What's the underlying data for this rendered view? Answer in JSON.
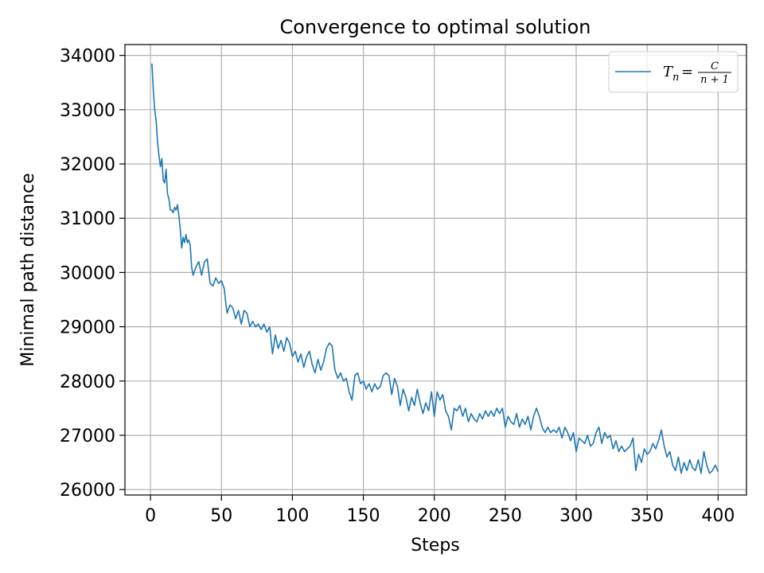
{
  "chart_data": {
    "type": "line",
    "title": "Convergence to optimal solution",
    "xlabel": "Steps",
    "ylabel": "Minimal path distance",
    "xlim": [
      -18,
      420
    ],
    "ylim": [
      25900,
      34200
    ],
    "xticks": [
      0,
      50,
      100,
      150,
      200,
      250,
      300,
      350,
      400
    ],
    "yticks": [
      26000,
      27000,
      28000,
      29000,
      30000,
      31000,
      32000,
      33000,
      34000
    ],
    "grid": true,
    "legend_position": "top-right",
    "series": [
      {
        "name": "T_n = C/(n+1)",
        "legend_lhs": "T",
        "legend_sub": "n",
        "legend_eq": "=",
        "legend_num": "C",
        "legend_den": "n + 1",
        "color": "#1f77b4",
        "points": [
          [
            1,
            33850
          ],
          [
            2,
            33350
          ],
          [
            3,
            33000
          ],
          [
            4,
            32800
          ],
          [
            5,
            32400
          ],
          [
            6,
            32150
          ],
          [
            7,
            31950
          ],
          [
            8,
            32100
          ],
          [
            9,
            31700
          ],
          [
            10,
            31650
          ],
          [
            11,
            31900
          ],
          [
            12,
            31450
          ],
          [
            13,
            31350
          ],
          [
            14,
            31150
          ],
          [
            15,
            31150
          ],
          [
            16,
            31100
          ],
          [
            17,
            31200
          ],
          [
            18,
            31150
          ],
          [
            19,
            31250
          ],
          [
            20,
            31050
          ],
          [
            21,
            30800
          ],
          [
            22,
            30450
          ],
          [
            23,
            30650
          ],
          [
            24,
            30550
          ],
          [
            25,
            30700
          ],
          [
            26,
            30550
          ],
          [
            27,
            30600
          ],
          [
            28,
            30500
          ],
          [
            29,
            30100
          ],
          [
            30,
            29950
          ],
          [
            32,
            30100
          ],
          [
            34,
            30200
          ],
          [
            36,
            29950
          ],
          [
            38,
            30200
          ],
          [
            40,
            30250
          ],
          [
            42,
            29800
          ],
          [
            44,
            29750
          ],
          [
            46,
            29900
          ],
          [
            48,
            29800
          ],
          [
            50,
            29850
          ],
          [
            52,
            29700
          ],
          [
            53,
            29450
          ],
          [
            54,
            29250
          ],
          [
            56,
            29400
          ],
          [
            58,
            29350
          ],
          [
            60,
            29150
          ],
          [
            62,
            29300
          ],
          [
            64,
            29050
          ],
          [
            66,
            29300
          ],
          [
            68,
            29250
          ],
          [
            70,
            29000
          ],
          [
            72,
            29100
          ],
          [
            74,
            29000
          ],
          [
            76,
            29050
          ],
          [
            78,
            28950
          ],
          [
            80,
            29050
          ],
          [
            82,
            28900
          ],
          [
            84,
            29000
          ],
          [
            86,
            28500
          ],
          [
            88,
            28850
          ],
          [
            90,
            28600
          ],
          [
            92,
            28750
          ],
          [
            94,
            28550
          ],
          [
            96,
            28800
          ],
          [
            98,
            28700
          ],
          [
            100,
            28450
          ],
          [
            102,
            28550
          ],
          [
            104,
            28350
          ],
          [
            106,
            28500
          ],
          [
            108,
            28250
          ],
          [
            110,
            28450
          ],
          [
            112,
            28550
          ],
          [
            114,
            28300
          ],
          [
            116,
            28150
          ],
          [
            118,
            28400
          ],
          [
            120,
            28200
          ],
          [
            122,
            28350
          ],
          [
            124,
            28600
          ],
          [
            126,
            28700
          ],
          [
            128,
            28650
          ],
          [
            130,
            28200
          ],
          [
            132,
            28050
          ],
          [
            134,
            28150
          ],
          [
            136,
            28000
          ],
          [
            138,
            28050
          ],
          [
            140,
            27800
          ],
          [
            142,
            27650
          ],
          [
            144,
            28100
          ],
          [
            146,
            28150
          ],
          [
            148,
            27950
          ],
          [
            150,
            28000
          ],
          [
            152,
            27850
          ],
          [
            154,
            27950
          ],
          [
            156,
            27800
          ],
          [
            158,
            27950
          ],
          [
            160,
            27850
          ],
          [
            162,
            27900
          ],
          [
            164,
            28100
          ],
          [
            166,
            28150
          ],
          [
            168,
            28100
          ],
          [
            170,
            27750
          ],
          [
            172,
            28050
          ],
          [
            174,
            27900
          ],
          [
            176,
            27550
          ],
          [
            178,
            27850
          ],
          [
            180,
            27700
          ],
          [
            182,
            27450
          ],
          [
            184,
            27700
          ],
          [
            186,
            27550
          ],
          [
            188,
            27850
          ],
          [
            190,
            27600
          ],
          [
            192,
            27400
          ],
          [
            194,
            27600
          ],
          [
            196,
            27450
          ],
          [
            198,
            27800
          ],
          [
            200,
            27350
          ],
          [
            202,
            27800
          ],
          [
            204,
            27650
          ],
          [
            206,
            27750
          ],
          [
            208,
            27450
          ],
          [
            210,
            27350
          ],
          [
            212,
            27100
          ],
          [
            214,
            27500
          ],
          [
            216,
            27450
          ],
          [
            218,
            27550
          ],
          [
            220,
            27350
          ],
          [
            222,
            27500
          ],
          [
            224,
            27250
          ],
          [
            226,
            27400
          ],
          [
            228,
            27300
          ],
          [
            230,
            27250
          ],
          [
            232,
            27400
          ],
          [
            234,
            27300
          ],
          [
            236,
            27450
          ],
          [
            238,
            27350
          ],
          [
            240,
            27450
          ],
          [
            242,
            27350
          ],
          [
            244,
            27500
          ],
          [
            246,
            27400
          ],
          [
            248,
            27500
          ],
          [
            250,
            27150
          ],
          [
            252,
            27350
          ],
          [
            254,
            27250
          ],
          [
            256,
            27200
          ],
          [
            258,
            27400
          ],
          [
            260,
            27150
          ],
          [
            262,
            27300
          ],
          [
            264,
            27200
          ],
          [
            266,
            27350
          ],
          [
            268,
            27100
          ],
          [
            270,
            27350
          ],
          [
            272,
            27500
          ],
          [
            274,
            27350
          ],
          [
            276,
            27150
          ],
          [
            278,
            27050
          ],
          [
            280,
            27150
          ],
          [
            282,
            27050
          ],
          [
            284,
            27100
          ],
          [
            286,
            27050
          ],
          [
            288,
            27150
          ],
          [
            290,
            26950
          ],
          [
            292,
            27150
          ],
          [
            294,
            27050
          ],
          [
            296,
            26900
          ],
          [
            298,
            27050
          ],
          [
            300,
            26700
          ],
          [
            302,
            26950
          ],
          [
            304,
            26900
          ],
          [
            306,
            26850
          ],
          [
            308,
            27000
          ],
          [
            310,
            26800
          ],
          [
            312,
            26850
          ],
          [
            314,
            27050
          ],
          [
            316,
            27150
          ],
          [
            318,
            26850
          ],
          [
            320,
            27050
          ],
          [
            322,
            26950
          ],
          [
            324,
            27000
          ],
          [
            326,
            26750
          ],
          [
            328,
            26900
          ],
          [
            330,
            26700
          ],
          [
            332,
            26800
          ],
          [
            334,
            26700
          ],
          [
            336,
            26750
          ],
          [
            338,
            26800
          ],
          [
            340,
            26950
          ],
          [
            342,
            26350
          ],
          [
            344,
            26650
          ],
          [
            346,
            26500
          ],
          [
            348,
            26750
          ],
          [
            350,
            26650
          ],
          [
            352,
            26700
          ],
          [
            354,
            26850
          ],
          [
            356,
            26750
          ],
          [
            358,
            26900
          ],
          [
            360,
            27100
          ],
          [
            362,
            26800
          ],
          [
            364,
            26600
          ],
          [
            366,
            26700
          ],
          [
            368,
            26450
          ],
          [
            370,
            26350
          ],
          [
            372,
            26600
          ],
          [
            374,
            26300
          ],
          [
            376,
            26500
          ],
          [
            378,
            26350
          ],
          [
            380,
            26550
          ],
          [
            382,
            26400
          ],
          [
            384,
            26350
          ],
          [
            386,
            26550
          ],
          [
            388,
            26300
          ],
          [
            390,
            26700
          ],
          [
            392,
            26450
          ],
          [
            394,
            26300
          ],
          [
            396,
            26350
          ],
          [
            398,
            26450
          ],
          [
            400,
            26330
          ]
        ]
      }
    ]
  }
}
